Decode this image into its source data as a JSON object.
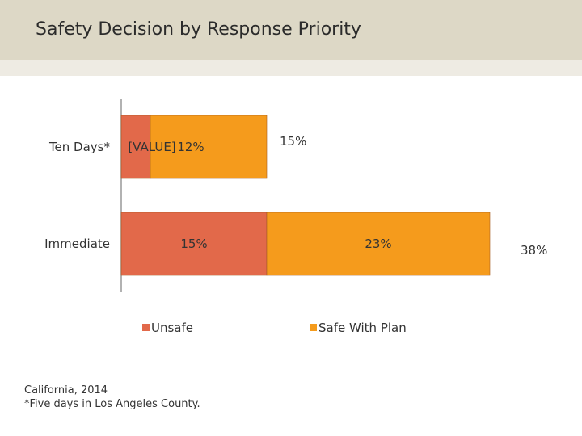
{
  "slide": {
    "title": "Safety Decision by Response Priority"
  },
  "chart_data": {
    "type": "bar",
    "orientation": "horizontal",
    "stacked": true,
    "categories": [
      "Ten Days*",
      "Immediate"
    ],
    "series": [
      {
        "name": "Unsafe",
        "color": "#e2694a",
        "values": [
          3,
          15
        ],
        "data_labels": [
          "[VALUE]",
          "15%"
        ]
      },
      {
        "name": "Safe With Plan",
        "color": "#f59b1c",
        "values": [
          12,
          23
        ],
        "data_labels": [
          "12%",
          "23%"
        ]
      }
    ],
    "totals": [
      "15%",
      "38%"
    ],
    "legend_position": "bottom",
    "grid": false
  },
  "footnote": {
    "line1": "California, 2014",
    "line2": "*Five days in Los Angeles County."
  }
}
